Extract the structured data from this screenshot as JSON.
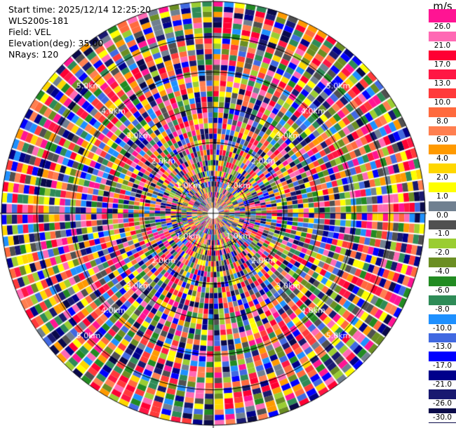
{
  "info": {
    "start_time": "Start time: 2025/12/14 12:25:20",
    "instrument": "WLS200s-181",
    "field": "Field: VEL",
    "elevation": "Elevation(deg): 35.00",
    "nrays": "NRays: 120"
  },
  "ppi": {
    "nrays": 120,
    "ngates": 40,
    "max_range_km": 6.0,
    "range_ring_labels": [
      "1.0km",
      "2.0km",
      "3.0km",
      "4.0km",
      "5.0km"
    ],
    "background": "#ffffff"
  },
  "colorbar": {
    "unit": "m/s",
    "labels": [
      "26.0",
      "21.0",
      "17.0",
      "13.0",
      "10.0",
      "8.0",
      "6.0",
      "4.0",
      "2.0",
      "1.0",
      "0.0",
      "-1.0",
      "-2.0",
      "-4.0",
      "-6.0",
      "-8.0",
      "-10.0",
      "-13.0",
      "-17.0",
      "-21.0",
      "-26.0",
      "-30.0"
    ],
    "colors": [
      "#ff1493",
      "#ff69b4",
      "#ff0033",
      "#ff1744",
      "#ff3a3a",
      "#ff6a3d",
      "#ff7f50",
      "#ff9a00",
      "#ffd700",
      "#ffff00",
      "#708090",
      "#505050",
      "#9acd32",
      "#6b8e23",
      "#228b22",
      "#2e8b57",
      "#1e90ff",
      "#4169e1",
      "#0000ff",
      "#00008b",
      "#191970",
      "#0a0a4a"
    ]
  }
}
